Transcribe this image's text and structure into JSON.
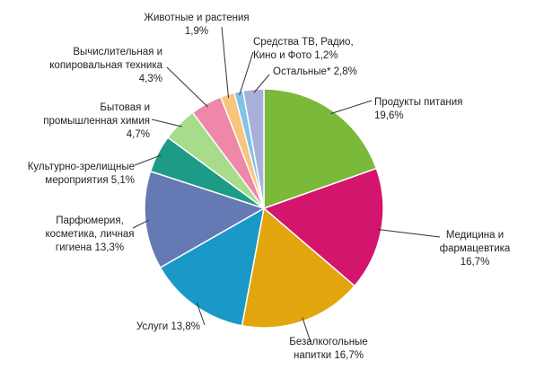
{
  "chart_data": {
    "type": "pie",
    "start": "12 o'clock, clockwise",
    "slices": [
      {
        "label": "Продукты питания",
        "value": 19.6,
        "display": "19,6%",
        "color": "#7ab93a"
      },
      {
        "label": "Медицина и фармацевтика",
        "value": 16.7,
        "display": "16,7%",
        "color": "#d4156e"
      },
      {
        "label": "Безалкогольные напитки",
        "value": 16.7,
        "display": "16,7%",
        "color": "#e2a50d"
      },
      {
        "label": "Услуги",
        "value": 13.8,
        "display": "13,8%",
        "color": "#1a98c8"
      },
      {
        "label": "Парфюмерия, косметика, личная гигиена",
        "value": 13.3,
        "display": "13,3%",
        "color": "#6579b4"
      },
      {
        "label": "Культурно-зрелищные мероприятия",
        "value": 5.1,
        "display": "5,1%",
        "color": "#1e9b87"
      },
      {
        "label": "Бытовая и промышленная химия",
        "value": 4.7,
        "display": "4,7%",
        "color": "#a6dc8a"
      },
      {
        "label": "Вычислительная и копировальная техника",
        "value": 4.3,
        "display": "4,3%",
        "color": "#ee87a8"
      },
      {
        "label": "Животные и растения",
        "value": 1.9,
        "display": "1,9%",
        "color": "#f7c57d"
      },
      {
        "label": "Средства ТВ, Радио, Кино и Фото",
        "value": 1.2,
        "display": "1,2%",
        "color": "#80c3e8"
      },
      {
        "label": "Остальные*",
        "value": 2.8,
        "display": "2,8%",
        "color": "#a9b0dc"
      }
    ],
    "label_lines": [
      [
        "Продукты питания",
        "19,6%"
      ],
      [
        "Медицина и",
        "фармацевтика",
        "16,7%"
      ],
      [
        "Безалкогольные",
        "напитки 16,7%"
      ],
      [
        "Услуги 13,8%"
      ],
      [
        "Парфюмерия,",
        "косметика, личная",
        "гигиена 13,3%"
      ],
      [
        "Культурно-зрелищные",
        "мероприятия 5,1%"
      ],
      [
        "Бытовая и",
        "промышленная химия",
        "4,7%"
      ],
      [
        "Вычислительная и",
        "копировальная техника",
        "4,3%"
      ],
      [
        "Животные и растения",
        "1,9%"
      ],
      [
        "Средства ТВ, Радио,",
        "Кино и Фото 1,2%"
      ],
      [
        "Остальные* 2,8%"
      ]
    ]
  }
}
